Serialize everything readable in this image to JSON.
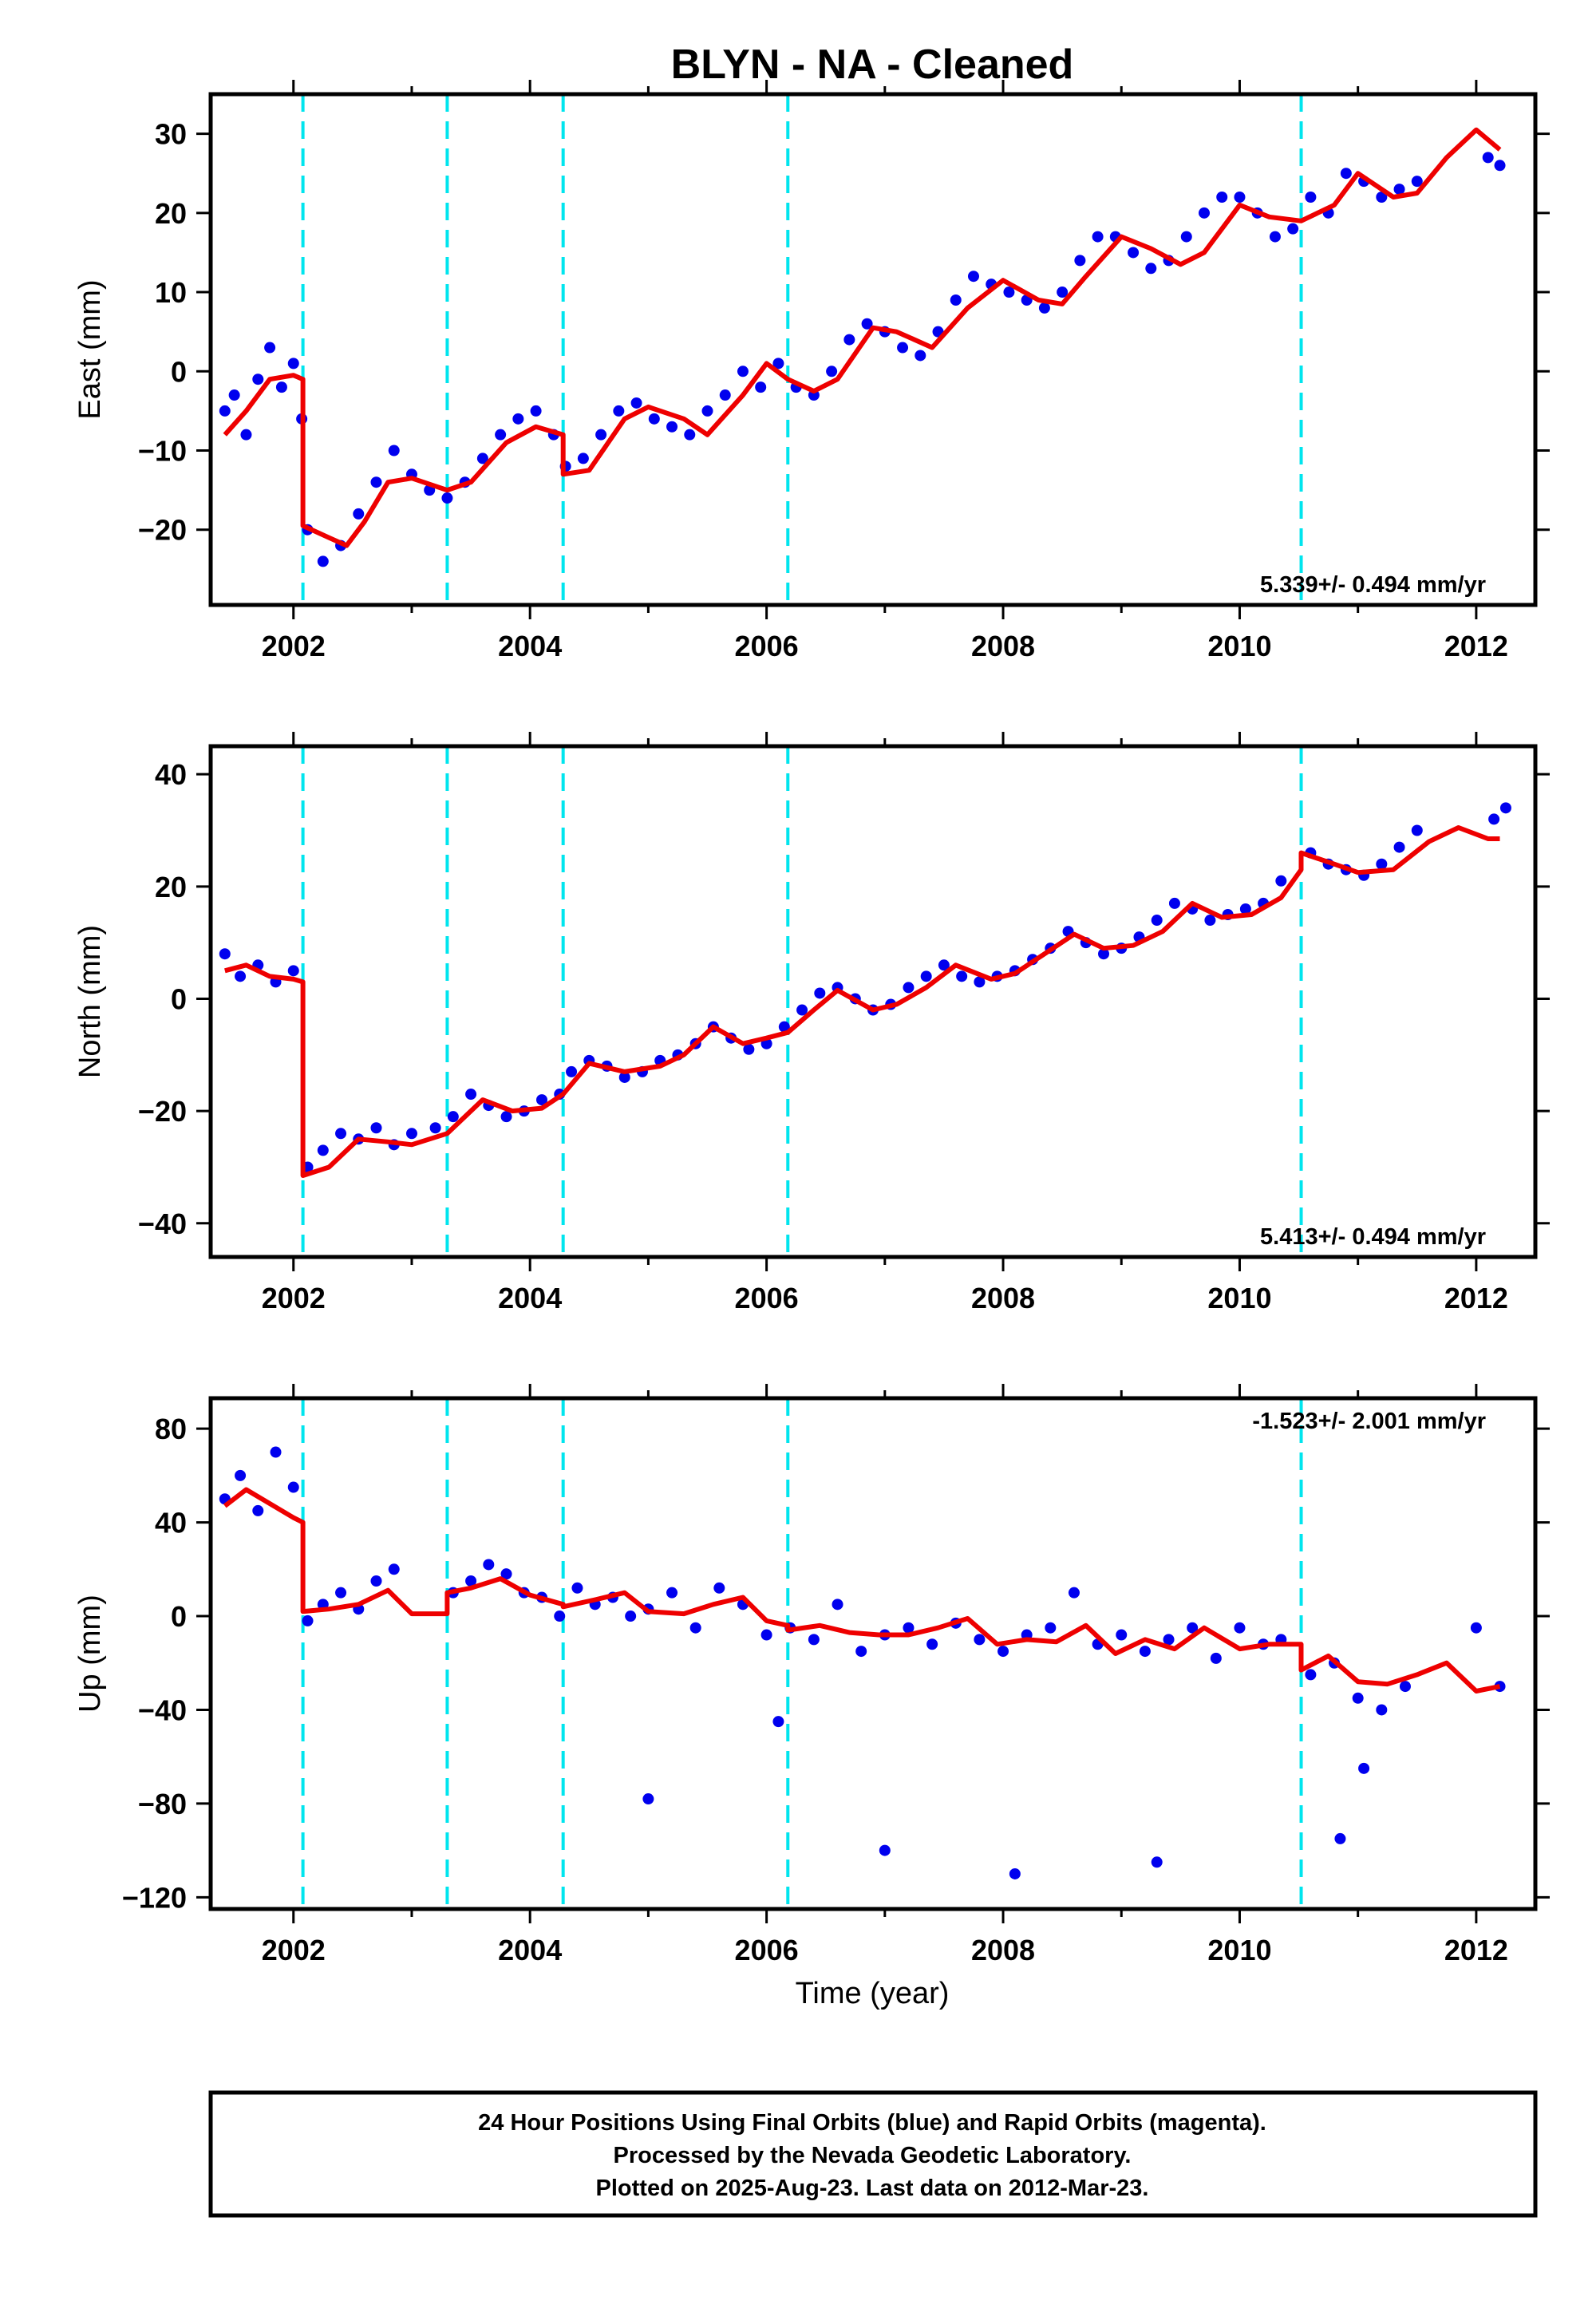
{
  "title": "BLYN  - NA - Cleaned",
  "xlabel": "Time (year)",
  "footer": {
    "lines": [
      "24 Hour Positions Using Final Orbits (blue) and Rapid Orbits (magenta).",
      "Processed by the Nevada Geodetic Laboratory.",
      "Plotted on 2025-Aug-23. Last data on 2012-Mar-23."
    ]
  },
  "colors": {
    "points": "#0000ee",
    "model": "#ee0000",
    "breaks": "#00e5ee"
  },
  "chart_data": [
    {
      "type": "scatter",
      "component": "east",
      "ylabel": "East (mm)",
      "xlim": [
        2001.3,
        2012.5
      ],
      "ylim": [
        -29.5,
        35
      ],
      "xticks": [
        2002,
        2004,
        2006,
        2008,
        2010,
        2012
      ],
      "yticks": [
        -20,
        -10,
        0,
        10,
        20,
        30
      ],
      "ytick_labels": [
        "−20",
        "−10",
        "0",
        "10",
        "20",
        "30"
      ],
      "rate_text": "5.339+/- 0.494 mm/yr",
      "rate_position": "bottom-right",
      "breaks": [
        2002.08,
        2003.3,
        2004.28,
        2006.18,
        2010.52
      ],
      "observed": {
        "x": [
          2001.42,
          2001.5,
          2001.6,
          2001.7,
          2001.8,
          2001.9,
          2002.0,
          2002.07,
          2002.12,
          2002.25,
          2002.4,
          2002.55,
          2002.7,
          2002.85,
          2003.0,
          2003.15,
          2003.3,
          2003.45,
          2003.6,
          2003.75,
          2003.9,
          2004.05,
          2004.2,
          2004.3,
          2004.45,
          2004.6,
          2004.75,
          2004.9,
          2005.05,
          2005.2,
          2005.35,
          2005.5,
          2005.65,
          2005.8,
          2005.95,
          2006.1,
          2006.25,
          2006.4,
          2006.55,
          2006.7,
          2006.85,
          2007.0,
          2007.15,
          2007.3,
          2007.45,
          2007.6,
          2007.75,
          2007.9,
          2008.05,
          2008.2,
          2008.35,
          2008.5,
          2008.65,
          2008.8,
          2008.95,
          2009.1,
          2009.25,
          2009.4,
          2009.55,
          2009.7,
          2009.85,
          2010.0,
          2010.15,
          2010.3,
          2010.45,
          2010.6,
          2010.75,
          2010.9,
          2011.05,
          2011.2,
          2011.35,
          2011.5,
          2012.1,
          2012.2
        ],
        "y": [
          -5,
          -3,
          -8,
          -1,
          3,
          -2,
          1,
          -6,
          -20,
          -24,
          -22,
          -18,
          -14,
          -10,
          -13,
          -15,
          -16,
          -14,
          -11,
          -8,
          -6,
          -5,
          -8,
          -12,
          -11,
          -8,
          -5,
          -4,
          -6,
          -7,
          -8,
          -5,
          -3,
          0,
          -2,
          1,
          -2,
          -3,
          0,
          4,
          6,
          5,
          3,
          2,
          5,
          9,
          12,
          11,
          10,
          9,
          8,
          10,
          14,
          17,
          17,
          15,
          13,
          14,
          17,
          20,
          22,
          22,
          20,
          17,
          18,
          22,
          20,
          25,
          24,
          22,
          23,
          24,
          27,
          26
        ]
      },
      "model": {
        "x": [
          2001.42,
          2001.6,
          2001.8,
          2002.0,
          2002.08,
          2002.08,
          2002.3,
          2002.45,
          2002.6,
          2002.8,
          2003.0,
          2003.2,
          2003.3,
          2003.5,
          2003.8,
          2004.05,
          2004.28,
          2004.28,
          2004.5,
          2004.8,
          2005.0,
          2005.3,
          2005.5,
          2005.8,
          2006.0,
          2006.18,
          2006.4,
          2006.6,
          2006.9,
          2007.1,
          2007.4,
          2007.7,
          2008.0,
          2008.3,
          2008.5,
          2008.7,
          2009.0,
          2009.25,
          2009.5,
          2009.7,
          2010.0,
          2010.25,
          2010.52,
          2010.52,
          2010.8,
          2011.0,
          2011.3,
          2011.5,
          2011.75,
          2012.0,
          2012.2
        ],
        "y": [
          -8,
          -5,
          -1,
          -0.5,
          -1,
          -19.5,
          -21,
          -22,
          -19,
          -14,
          -13.5,
          -14.5,
          -15,
          -14,
          -9,
          -7,
          -8,
          -13,
          -12.5,
          -6,
          -4.5,
          -6,
          -8,
          -3,
          1,
          -1,
          -2.5,
          -1,
          5.5,
          5,
          3,
          8,
          11.5,
          9,
          8.5,
          12,
          17,
          15.5,
          13.5,
          15,
          21,
          19.5,
          19,
          19,
          21,
          25,
          22,
          22.5,
          27,
          30.5,
          28
        ]
      }
    },
    {
      "type": "scatter",
      "component": "north",
      "ylabel": "North (mm)",
      "xlim": [
        2001.3,
        2012.5
      ],
      "ylim": [
        -46,
        45
      ],
      "xticks": [
        2002,
        2004,
        2006,
        2008,
        2010,
        2012
      ],
      "yticks": [
        -40,
        -20,
        0,
        20,
        40
      ],
      "ytick_labels": [
        "−40",
        "−20",
        "0",
        "20",
        "40"
      ],
      "rate_text": "5.413+/- 0.494 mm/yr",
      "rate_position": "bottom-right",
      "breaks": [
        2002.08,
        2003.3,
        2004.28,
        2006.18,
        2010.52
      ],
      "observed": {
        "x": [
          2001.42,
          2001.55,
          2001.7,
          2001.85,
          2002.0,
          2002.12,
          2002.25,
          2002.4,
          2002.55,
          2002.7,
          2002.85,
          2003.0,
          2003.2,
          2003.35,
          2003.5,
          2003.65,
          2003.8,
          2003.95,
          2004.1,
          2004.25,
          2004.35,
          2004.5,
          2004.65,
          2004.8,
          2004.95,
          2005.1,
          2005.25,
          2005.4,
          2005.55,
          2005.7,
          2005.85,
          2006.0,
          2006.15,
          2006.3,
          2006.45,
          2006.6,
          2006.75,
          2006.9,
          2007.05,
          2007.2,
          2007.35,
          2007.5,
          2007.65,
          2007.8,
          2007.95,
          2008.1,
          2008.25,
          2008.4,
          2008.55,
          2008.7,
          2008.85,
          2009.0,
          2009.15,
          2009.3,
          2009.45,
          2009.6,
          2009.75,
          2009.9,
          2010.05,
          2010.2,
          2010.35,
          2010.6,
          2010.75,
          2010.9,
          2011.05,
          2011.2,
          2011.35,
          2011.5,
          2012.15,
          2012.25
        ],
        "y": [
          8,
          4,
          6,
          3,
          5,
          -30,
          -27,
          -24,
          -25,
          -23,
          -26,
          -24,
          -23,
          -21,
          -17,
          -19,
          -21,
          -20,
          -18,
          -17,
          -13,
          -11,
          -12,
          -14,
          -13,
          -11,
          -10,
          -8,
          -5,
          -7,
          -9,
          -8,
          -5,
          -2,
          1,
          2,
          0,
          -2,
          -1,
          2,
          4,
          6,
          4,
          3,
          4,
          5,
          7,
          9,
          12,
          10,
          8,
          9,
          11,
          14,
          17,
          16,
          14,
          15,
          16,
          17,
          21,
          26,
          24,
          23,
          22,
          24,
          27,
          30,
          32,
          34
        ]
      },
      "model": {
        "x": [
          2001.42,
          2001.6,
          2001.8,
          2002.0,
          2002.08,
          2002.08,
          2002.3,
          2002.55,
          2002.8,
          2003.0,
          2003.3,
          2003.6,
          2003.85,
          2004.1,
          2004.28,
          2004.5,
          2004.8,
          2005.1,
          2005.3,
          2005.55,
          2005.8,
          2006.0,
          2006.18,
          2006.4,
          2006.6,
          2006.9,
          2007.1,
          2007.35,
          2007.6,
          2007.9,
          2008.1,
          2008.35,
          2008.6,
          2008.85,
          2009.1,
          2009.35,
          2009.6,
          2009.85,
          2010.1,
          2010.35,
          2010.52,
          2010.52,
          2010.8,
          2011.0,
          2011.3,
          2011.6,
          2011.85,
          2012.1,
          2012.2
        ],
        "y": [
          5,
          6,
          4,
          3.5,
          3,
          -31.5,
          -30,
          -25,
          -25.5,
          -26,
          -24,
          -18,
          -20,
          -19.5,
          -17,
          -11.5,
          -13,
          -12,
          -10,
          -5,
          -8,
          -7,
          -6,
          -2,
          1.5,
          -2,
          -1,
          2,
          6,
          3.5,
          4.5,
          8,
          11.5,
          9,
          9.5,
          12,
          17,
          14.5,
          15,
          18,
          23,
          26,
          24,
          22.5,
          23,
          28,
          30.5,
          28.5,
          28.5
        ]
      }
    },
    {
      "type": "scatter",
      "component": "up",
      "ylabel": "Up (mm)",
      "xlim": [
        2001.3,
        2012.5
      ],
      "ylim": [
        -125,
        93
      ],
      "xticks": [
        2002,
        2004,
        2006,
        2008,
        2010,
        2012
      ],
      "yticks": [
        -120,
        -80,
        -40,
        0,
        40,
        80
      ],
      "ytick_labels": [
        "−120",
        "−80",
        "−40",
        "0",
        "40",
        "80"
      ],
      "rate_text": "-1.523+/- 2.001 mm/yr",
      "rate_position": "top-right",
      "breaks": [
        2002.08,
        2003.3,
        2004.28,
        2006.18,
        2010.52
      ],
      "observed": {
        "x": [
          2001.42,
          2001.55,
          2001.7,
          2001.85,
          2002.0,
          2002.12,
          2002.25,
          2002.4,
          2002.55,
          2002.7,
          2002.85,
          2003.35,
          2003.5,
          2003.65,
          2003.8,
          2003.95,
          2004.1,
          2004.25,
          2004.4,
          2004.55,
          2004.7,
          2004.85,
          2005.0,
          2005.2,
          2005.4,
          2005.6,
          2005.8,
          2006.0,
          2006.2,
          2006.4,
          2006.6,
          2006.8,
          2007.0,
          2007.2,
          2007.4,
          2007.6,
          2007.8,
          2008.0,
          2008.2,
          2008.4,
          2008.6,
          2008.8,
          2009.0,
          2009.2,
          2009.4,
          2009.6,
          2009.8,
          2010.0,
          2010.2,
          2010.35,
          2010.6,
          2010.8,
          2011.0,
          2011.2,
          2011.4,
          2012.0,
          2012.2,
          2005.0,
          2006.1,
          2007.0,
          2008.1,
          2009.3,
          2010.85,
          2011.05
        ],
        "y": [
          50,
          60,
          45,
          70,
          55,
          -2,
          5,
          10,
          3,
          15,
          20,
          10,
          15,
          22,
          18,
          10,
          8,
          0,
          12,
          5,
          8,
          0,
          3,
          10,
          -5,
          12,
          5,
          -8,
          -5,
          -10,
          5,
          -15,
          -8,
          -5,
          -12,
          -3,
          -10,
          -15,
          -8,
          -5,
          10,
          -12,
          -8,
          -15,
          -10,
          -5,
          -18,
          -5,
          -12,
          -10,
          -25,
          -20,
          -35,
          -40,
          -30,
          -5,
          -30,
          -78,
          -45,
          -100,
          -110,
          -105,
          -95,
          -65
        ]
      },
      "model": {
        "x": [
          2001.42,
          2001.6,
          2001.8,
          2002.0,
          2002.08,
          2002.08,
          2002.3,
          2002.55,
          2002.8,
          2003.0,
          2003.3,
          2003.3,
          2003.5,
          2003.75,
          2004.0,
          2004.28,
          2004.28,
          2004.55,
          2004.8,
          2005.0,
          2005.3,
          2005.55,
          2005.8,
          2006.0,
          2006.18,
          2006.18,
          2006.45,
          2006.7,
          2006.95,
          2007.2,
          2007.45,
          2007.7,
          2007.95,
          2008.2,
          2008.45,
          2008.7,
          2008.95,
          2009.2,
          2009.45,
          2009.7,
          2010.0,
          2010.25,
          2010.52,
          2010.52,
          2010.75,
          2011.0,
          2011.25,
          2011.5,
          2011.75,
          2012.0,
          2012.2
        ],
        "y": [
          47,
          54,
          48,
          42,
          40,
          2,
          3,
          5,
          11,
          1,
          1,
          10,
          12,
          16,
          9,
          5,
          4,
          7,
          10,
          2,
          1,
          5,
          8,
          -2,
          -4,
          -6,
          -4,
          -7,
          -8,
          -8,
          -5,
          -1,
          -12,
          -10,
          -11,
          -4,
          -16,
          -10,
          -14,
          -5,
          -14,
          -12,
          -12,
          -23,
          -17,
          -28,
          -29,
          -25,
          -20,
          -32,
          -30
        ]
      }
    }
  ]
}
